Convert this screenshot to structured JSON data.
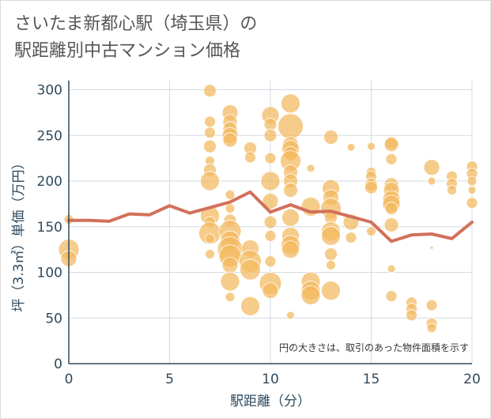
{
  "chart_data": {
    "type": "scatter",
    "title_line1": "さいたま新都心駅（埼玉県）の",
    "title_line2": "駅距離別中古マンション価格",
    "xlabel": "駅距離（分）",
    "ylabel": "坪（3.3㎡）単価（万円）",
    "annotation": "円の大きさは、取引のあった物件面積を示す",
    "xlim": [
      0,
      20
    ],
    "ylim": [
      0,
      310
    ],
    "xticks": [
      0,
      5,
      10,
      15,
      20
    ],
    "yticks": [
      0,
      50,
      100,
      150,
      200,
      250,
      300
    ],
    "grid": true,
    "bubble_color": "#f2b85e",
    "line_color": "#d2705a",
    "bubbles": [
      {
        "x": 0,
        "y": 158,
        "s": 6
      },
      {
        "x": 0,
        "y": 125,
        "s": 13
      },
      {
        "x": 0,
        "y": 115,
        "s": 10
      },
      {
        "x": 7,
        "y": 299,
        "s": 8
      },
      {
        "x": 7,
        "y": 265,
        "s": 7
      },
      {
        "x": 7,
        "y": 253,
        "s": 7
      },
      {
        "x": 7,
        "y": 238,
        "s": 8
      },
      {
        "x": 7,
        "y": 222,
        "s": 6
      },
      {
        "x": 7,
        "y": 212,
        "s": 8
      },
      {
        "x": 7,
        "y": 200,
        "s": 12
      },
      {
        "x": 7,
        "y": 162,
        "s": 12
      },
      {
        "x": 7,
        "y": 155,
        "s": 7
      },
      {
        "x": 7,
        "y": 143,
        "s": 14
      },
      {
        "x": 7,
        "y": 137,
        "s": 6
      },
      {
        "x": 7,
        "y": 120,
        "s": 6
      },
      {
        "x": 8,
        "y": 275,
        "s": 10
      },
      {
        "x": 8,
        "y": 265,
        "s": 9
      },
      {
        "x": 8,
        "y": 257,
        "s": 9
      },
      {
        "x": 8,
        "y": 250,
        "s": 10
      },
      {
        "x": 8,
        "y": 245,
        "s": 9
      },
      {
        "x": 8,
        "y": 185,
        "s": 6
      },
      {
        "x": 8,
        "y": 170,
        "s": 6
      },
      {
        "x": 8,
        "y": 157,
        "s": 8
      },
      {
        "x": 8,
        "y": 145,
        "s": 14
      },
      {
        "x": 8,
        "y": 135,
        "s": 12
      },
      {
        "x": 8,
        "y": 125,
        "s": 16
      },
      {
        "x": 8,
        "y": 118,
        "s": 14
      },
      {
        "x": 8,
        "y": 108,
        "s": 10
      },
      {
        "x": 8,
        "y": 90,
        "s": 12
      },
      {
        "x": 8,
        "y": 73,
        "s": 6
      },
      {
        "x": 9,
        "y": 236,
        "s": 8
      },
      {
        "x": 9,
        "y": 226,
        "s": 7
      },
      {
        "x": 9,
        "y": 126,
        "s": 11
      },
      {
        "x": 9,
        "y": 112,
        "s": 14
      },
      {
        "x": 9,
        "y": 103,
        "s": 13
      },
      {
        "x": 9,
        "y": 63,
        "s": 12
      },
      {
        "x": 10,
        "y": 272,
        "s": 11
      },
      {
        "x": 10,
        "y": 262,
        "s": 8
      },
      {
        "x": 10,
        "y": 250,
        "s": 8
      },
      {
        "x": 10,
        "y": 225,
        "s": 7
      },
      {
        "x": 10,
        "y": 200,
        "s": 12
      },
      {
        "x": 10,
        "y": 178,
        "s": 10
      },
      {
        "x": 10,
        "y": 155,
        "s": 8
      },
      {
        "x": 10,
        "y": 140,
        "s": 7
      },
      {
        "x": 10,
        "y": 112,
        "s": 7
      },
      {
        "x": 10,
        "y": 88,
        "s": 14
      },
      {
        "x": 10,
        "y": 80,
        "s": 10
      },
      {
        "x": 11,
        "y": 285,
        "s": 12
      },
      {
        "x": 11,
        "y": 260,
        "s": 16
      },
      {
        "x": 11,
        "y": 240,
        "s": 10
      },
      {
        "x": 11,
        "y": 235,
        "s": 11
      },
      {
        "x": 11,
        "y": 230,
        "s": 9
      },
      {
        "x": 11,
        "y": 222,
        "s": 13
      },
      {
        "x": 11,
        "y": 210,
        "s": 9
      },
      {
        "x": 11,
        "y": 200,
        "s": 9
      },
      {
        "x": 11,
        "y": 190,
        "s": 9
      },
      {
        "x": 11,
        "y": 160,
        "s": 11
      },
      {
        "x": 11,
        "y": 140,
        "s": 11
      },
      {
        "x": 11,
        "y": 130,
        "s": 12
      },
      {
        "x": 11,
        "y": 125,
        "s": 11
      },
      {
        "x": 11,
        "y": 53,
        "s": 5
      },
      {
        "x": 12,
        "y": 214,
        "s": 5
      },
      {
        "x": 12,
        "y": 172,
        "s": 12
      },
      {
        "x": 12,
        "y": 90,
        "s": 12
      },
      {
        "x": 12,
        "y": 80,
        "s": 12
      },
      {
        "x": 12,
        "y": 75,
        "s": 12
      },
      {
        "x": 13,
        "y": 248,
        "s": 9
      },
      {
        "x": 13,
        "y": 192,
        "s": 11
      },
      {
        "x": 13,
        "y": 182,
        "s": 10
      },
      {
        "x": 13,
        "y": 170,
        "s": 13
      },
      {
        "x": 13,
        "y": 160,
        "s": 8
      },
      {
        "x": 13,
        "y": 145,
        "s": 12
      },
      {
        "x": 13,
        "y": 140,
        "s": 12
      },
      {
        "x": 13,
        "y": 120,
        "s": 8
      },
      {
        "x": 13,
        "y": 108,
        "s": 6
      },
      {
        "x": 13,
        "y": 80,
        "s": 12
      },
      {
        "x": 14,
        "y": 237,
        "s": 5
      },
      {
        "x": 14,
        "y": 155,
        "s": 10
      },
      {
        "x": 14,
        "y": 138,
        "s": 7
      },
      {
        "x": 15,
        "y": 238,
        "s": 5
      },
      {
        "x": 15,
        "y": 210,
        "s": 6
      },
      {
        "x": 15,
        "y": 205,
        "s": 7
      },
      {
        "x": 15,
        "y": 196,
        "s": 8
      },
      {
        "x": 15,
        "y": 193,
        "s": 8
      },
      {
        "x": 15,
        "y": 145,
        "s": 6
      },
      {
        "x": 16,
        "y": 242,
        "s": 8
      },
      {
        "x": 16,
        "y": 240,
        "s": 9
      },
      {
        "x": 16,
        "y": 224,
        "s": 7
      },
      {
        "x": 16,
        "y": 196,
        "s": 9
      },
      {
        "x": 16,
        "y": 190,
        "s": 10
      },
      {
        "x": 16,
        "y": 180,
        "s": 11
      },
      {
        "x": 16,
        "y": 175,
        "s": 11
      },
      {
        "x": 16,
        "y": 170,
        "s": 8
      },
      {
        "x": 16,
        "y": 152,
        "s": 9
      },
      {
        "x": 16,
        "y": 104,
        "s": 5
      },
      {
        "x": 16,
        "y": 74,
        "s": 7
      },
      {
        "x": 17,
        "y": 67,
        "s": 7
      },
      {
        "x": 17,
        "y": 60,
        "s": 7
      },
      {
        "x": 17,
        "y": 53,
        "s": 7
      },
      {
        "x": 18,
        "y": 215,
        "s": 10
      },
      {
        "x": 18,
        "y": 200,
        "s": 5
      },
      {
        "x": 18,
        "y": 127,
        "s": 2
      },
      {
        "x": 18,
        "y": 64,
        "s": 7
      },
      {
        "x": 18,
        "y": 44,
        "s": 7
      },
      {
        "x": 18,
        "y": 39,
        "s": 6
      },
      {
        "x": 19,
        "y": 205,
        "s": 7
      },
      {
        "x": 19,
        "y": 197,
        "s": 7
      },
      {
        "x": 19,
        "y": 190,
        "s": 6
      },
      {
        "x": 20,
        "y": 216,
        "s": 7
      },
      {
        "x": 20,
        "y": 208,
        "s": 7
      },
      {
        "x": 20,
        "y": 200,
        "s": 6
      },
      {
        "x": 20,
        "y": 190,
        "s": 5
      },
      {
        "x": 20,
        "y": 176,
        "s": 7
      }
    ],
    "average_line": [
      {
        "x": 0,
        "y": 157
      },
      {
        "x": 1,
        "y": 157
      },
      {
        "x": 2,
        "y": 156
      },
      {
        "x": 3,
        "y": 164
      },
      {
        "x": 4,
        "y": 163
      },
      {
        "x": 5,
        "y": 173
      },
      {
        "x": 6,
        "y": 165
      },
      {
        "x": 7,
        "y": 171
      },
      {
        "x": 8,
        "y": 177
      },
      {
        "x": 9,
        "y": 188
      },
      {
        "x": 10,
        "y": 166
      },
      {
        "x": 11,
        "y": 174
      },
      {
        "x": 12,
        "y": 166
      },
      {
        "x": 13,
        "y": 167
      },
      {
        "x": 14,
        "y": 161
      },
      {
        "x": 15,
        "y": 155
      },
      {
        "x": 16,
        "y": 134
      },
      {
        "x": 17,
        "y": 141
      },
      {
        "x": 18,
        "y": 142
      },
      {
        "x": 19,
        "y": 137
      },
      {
        "x": 20,
        "y": 155
      }
    ]
  }
}
